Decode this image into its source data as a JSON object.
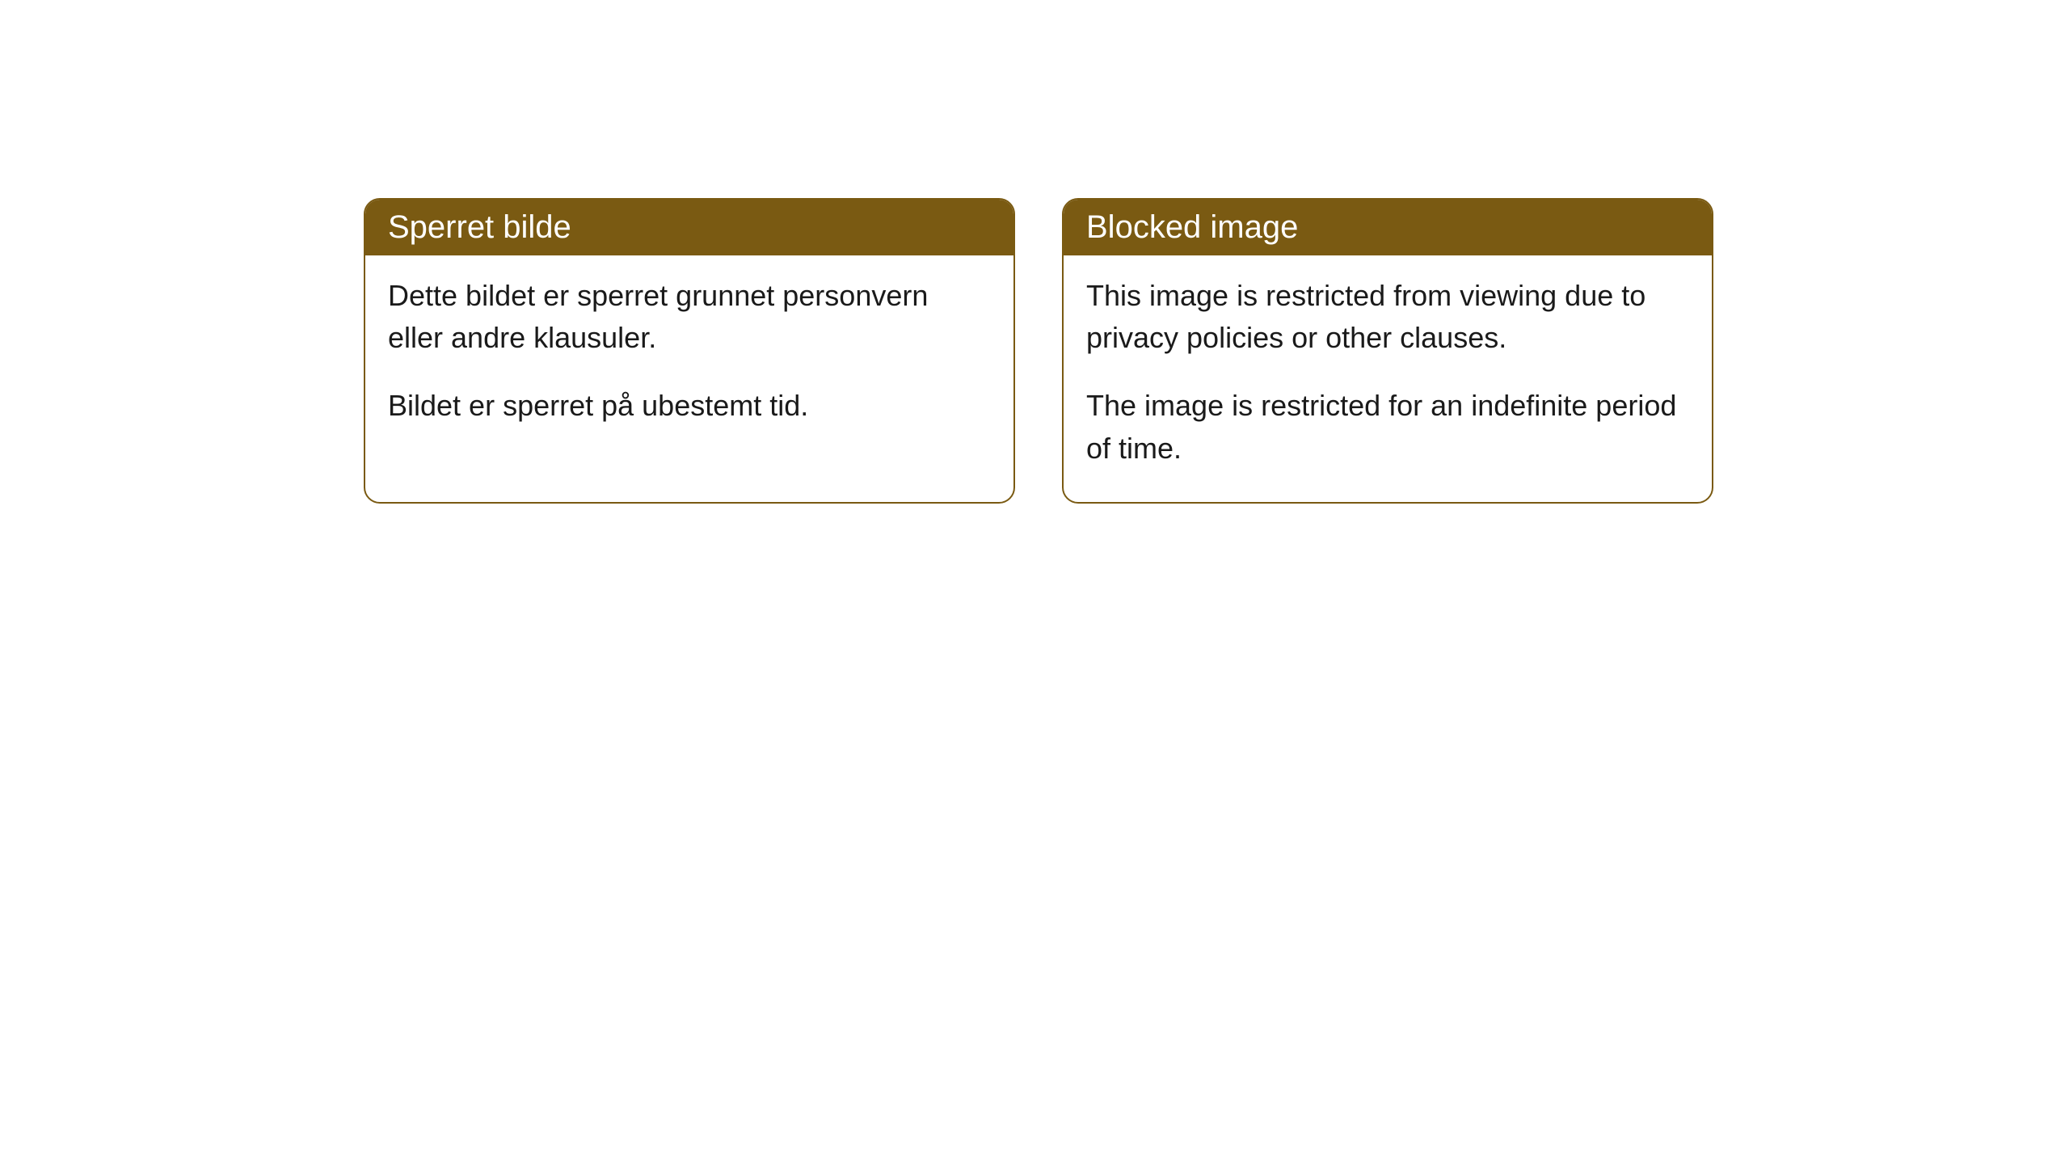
{
  "cards": [
    {
      "title": "Sperret bilde",
      "paragraph1": "Dette bildet er sperret grunnet personvern eller andre klausuler.",
      "paragraph2": "Bildet er sperret på ubestemt tid."
    },
    {
      "title": "Blocked image",
      "paragraph1": "This image is restricted from viewing due to privacy policies or other clauses.",
      "paragraph2": "The image is restricted for an indefinite period of time."
    }
  ],
  "styling": {
    "header_background": "#7a5a12",
    "header_text_color": "#ffffff",
    "border_color": "#7a5a12",
    "body_background": "#ffffff",
    "body_text_color": "#1a1a1a",
    "border_radius": 20,
    "title_fontsize": 40,
    "body_fontsize": 36
  }
}
